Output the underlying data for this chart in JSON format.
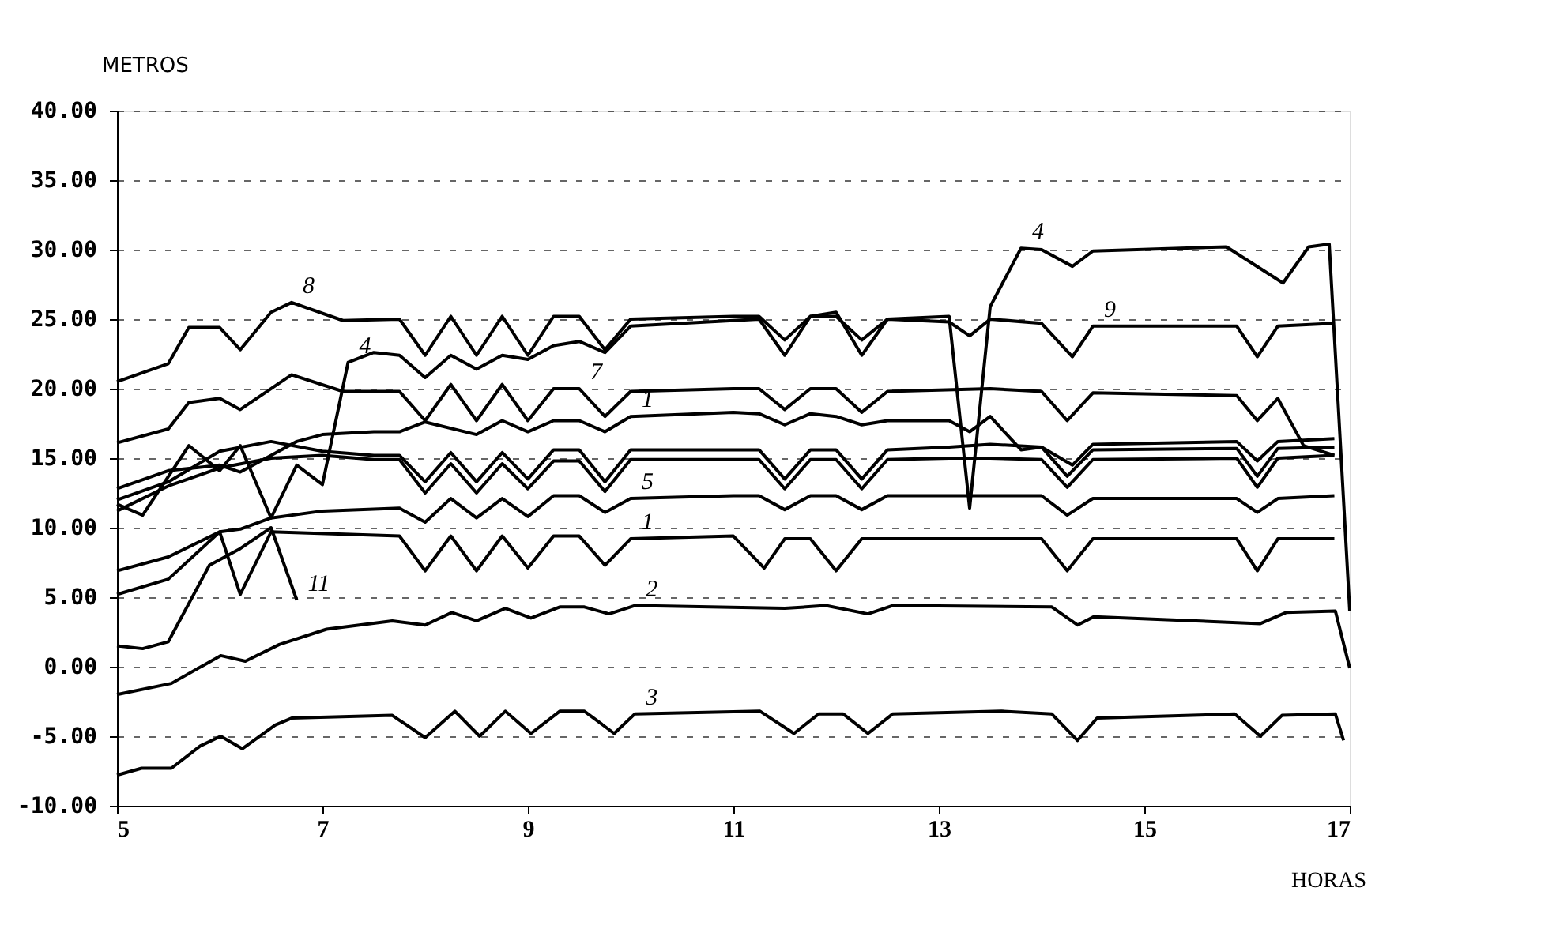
{
  "chart_data": {
    "type": "line",
    "ylabel": "METROS",
    "xlabel": "HORAS",
    "xlim": [
      5,
      17
    ],
    "xticks": [
      5,
      7,
      9,
      11,
      13,
      15,
      17
    ],
    "ylim": [
      -10,
      40
    ],
    "yticks": [
      {
        "value": -10,
        "label": "-10.00"
      },
      {
        "value": -5,
        "label": "-5.00"
      },
      {
        "value": 0,
        "label": "0.00"
      },
      {
        "value": 5,
        "label": "5.00"
      },
      {
        "value": 10,
        "label": "10.00"
      },
      {
        "value": 15,
        "label": "15.00"
      },
      {
        "value": 20,
        "label": "20.00"
      },
      {
        "value": 25,
        "label": "25.00"
      },
      {
        "value": 30,
        "label": "30.00"
      },
      {
        "value": 35,
        "label": "35.00"
      },
      {
        "value": 40,
        "label": "40.00"
      }
    ],
    "grid": "y",
    "marker": "none",
    "line_style": "solid",
    "series": [
      {
        "color": "#000000",
        "x": [
          5,
          5.5,
          5.7,
          6,
          6.2,
          6.5,
          6.7,
          7.2,
          7.75,
          8,
          8.25,
          8.5,
          8.75,
          9,
          9.25,
          9.5,
          9.75,
          10,
          11,
          11.25,
          11.5,
          11.75,
          12,
          12.25,
          12.5,
          13.1,
          13.3,
          13.5,
          14,
          14.3,
          14.5,
          15.9,
          16.1,
          16.3,
          16.85
        ],
        "values": [
          20.5,
          21.8,
          24.4,
          24.4,
          22.8,
          25.5,
          26.2,
          24.9,
          25,
          22.4,
          25.2,
          22.4,
          25.2,
          22.4,
          25.2,
          25.2,
          22.8,
          25,
          25.2,
          25.2,
          23.5,
          25.2,
          25.2,
          23.5,
          25,
          24.8,
          23.8,
          25,
          24.7,
          22.3,
          24.5,
          24.5,
          22.3,
          24.5,
          24.7
        ]
      },
      {
        "color": "#000000",
        "x": [
          5,
          5.25,
          5.7,
          6,
          6.2,
          6.5,
          6.75,
          7,
          7.25,
          7.5,
          7.75,
          8,
          8.25,
          8.5,
          8.75,
          9,
          9.25,
          9.5,
          9.75,
          10,
          11,
          11.25,
          11.5,
          11.75,
          12,
          12.25,
          12.5,
          13.1,
          13.3,
          13.5,
          13.8,
          14,
          14.3,
          14.5,
          15.8,
          16.35,
          16.6,
          16.8,
          17
        ],
        "values": [
          11.7,
          10.9,
          15.9,
          14.1,
          15.9,
          10.7,
          14.5,
          13.1,
          21.9,
          22.6,
          22.4,
          20.8,
          22.4,
          21.4,
          22.4,
          22.1,
          23.1,
          23.4,
          22.6,
          24.5,
          24.9,
          25,
          22.4,
          25.2,
          25.5,
          22.4,
          25,
          25.2,
          11.4,
          25.9,
          30.1,
          30,
          28.8,
          29.9,
          30.2,
          27.6,
          30.2,
          30.4,
          4
        ]
      },
      {
        "color": "#000000",
        "x": [
          5,
          5.5,
          5.7,
          6,
          6.2,
          6.7,
          7.2,
          7.75,
          8,
          8.25,
          8.5,
          8.75,
          9,
          9.25,
          9.5,
          9.75,
          10,
          11,
          11.25,
          11.5,
          11.75,
          12,
          12.25,
          12.5,
          13.5,
          14,
          14.25,
          14.5,
          15.9,
          16.1,
          16.3,
          16.55,
          16.85
        ],
        "values": [
          16.1,
          17.1,
          19,
          19.3,
          18.5,
          21,
          19.8,
          19.8,
          17.7,
          20.3,
          17.7,
          20.3,
          17.7,
          20,
          20,
          18,
          19.8,
          20,
          20,
          18.5,
          20,
          20,
          18.3,
          19.8,
          20,
          19.8,
          17.7,
          19.7,
          19.5,
          17.7,
          19.3,
          15.9,
          15.2
        ]
      },
      {
        "color": "#000000",
        "x": [
          5,
          5.5,
          6,
          6.2,
          6.5,
          6.75,
          7,
          7.5,
          7.75,
          8,
          8.5,
          8.75,
          9,
          9.25,
          9.5,
          9.75,
          10,
          11,
          11.25,
          11.5,
          11.75,
          12,
          12.25,
          12.5,
          13.1,
          13.3,
          13.5,
          13.8,
          14,
          14.3,
          14.5,
          15.9,
          16.1,
          16.3,
          16.85
        ],
        "values": [
          12.8,
          14.1,
          14.5,
          14,
          15.2,
          16.2,
          16.7,
          16.9,
          16.9,
          17.6,
          16.7,
          17.7,
          16.9,
          17.7,
          17.7,
          16.9,
          18,
          18.3,
          18.2,
          17.4,
          18.2,
          18,
          17.4,
          17.7,
          17.7,
          16.9,
          18,
          15.6,
          15.8,
          14.5,
          16,
          16.2,
          14.8,
          16.2,
          16.4
        ]
      },
      {
        "color": "#000000",
        "x": [
          5,
          5.5,
          6,
          6.5,
          7,
          7.5,
          7.75,
          8,
          8.25,
          8.5,
          8.75,
          9,
          9.25,
          9.5,
          9.75,
          10,
          11,
          11.25,
          11.5,
          11.75,
          12,
          12.25,
          12.5,
          13.1,
          13.5,
          14,
          14.25,
          14.5,
          15.9,
          16.1,
          16.3,
          16.85
        ],
        "values": [
          12,
          13.3,
          15.5,
          16.2,
          15.5,
          15.2,
          15.2,
          13.3,
          15.4,
          13.3,
          15.4,
          13.5,
          15.6,
          15.6,
          13.3,
          15.6,
          15.6,
          15.6,
          13.5,
          15.6,
          15.6,
          13.5,
          15.6,
          15.8,
          16,
          15.8,
          13.7,
          15.6,
          15.7,
          13.7,
          15.7,
          15.8
        ]
      },
      {
        "color": "#000000",
        "x": [
          5,
          5.5,
          6,
          6.5,
          7,
          7.5,
          7.75,
          8,
          8.25,
          8.5,
          8.75,
          9,
          9.25,
          9.5,
          9.75,
          10,
          11,
          11.25,
          11.5,
          11.75,
          12,
          12.25,
          12.5,
          13.1,
          13.5,
          14,
          14.25,
          14.5,
          15.9,
          16.1,
          16.3,
          16.85
        ],
        "values": [
          11.2,
          13,
          14.3,
          15,
          15.2,
          14.9,
          14.9,
          12.5,
          14.6,
          12.5,
          14.6,
          12.8,
          14.8,
          14.8,
          12.6,
          14.9,
          14.9,
          14.9,
          12.8,
          14.9,
          14.9,
          12.8,
          14.9,
          15,
          15,
          14.9,
          12.9,
          14.9,
          15,
          12.9,
          15,
          15.2
        ]
      },
      {
        "color": "#000000",
        "x": [
          5,
          5.5,
          6,
          6.2,
          6.5,
          7,
          7.75,
          8,
          8.25,
          8.5,
          8.75,
          9,
          9.25,
          9.5,
          9.75,
          10,
          11,
          11.25,
          11.5,
          11.75,
          12,
          12.25,
          12.5,
          14,
          14.25,
          14.5,
          15.9,
          16.1,
          16.3,
          16.85
        ],
        "values": [
          6.9,
          7.9,
          9.7,
          9.9,
          10.7,
          11.2,
          11.4,
          10.4,
          12.1,
          10.7,
          12.1,
          10.8,
          12.3,
          12.3,
          11.1,
          12.1,
          12.3,
          12.3,
          11.3,
          12.3,
          12.3,
          11.3,
          12.3,
          12.3,
          10.9,
          12.1,
          12.1,
          11.1,
          12.1,
          12.3
        ]
      },
      {
        "color": "#000000",
        "x": [
          5,
          5.5,
          6,
          6.2,
          6.5,
          7.75,
          8,
          8.25,
          8.5,
          8.75,
          9,
          9.25,
          9.5,
          9.75,
          10,
          11,
          11.3,
          11.5,
          11.75,
          12,
          12.25,
          12.5,
          14,
          14.25,
          14.5,
          15.9,
          16.1,
          16.3,
          16.85
        ],
        "values": [
          5.2,
          6.3,
          9.7,
          5.2,
          9.7,
          9.4,
          6.9,
          9.4,
          6.9,
          9.4,
          7.1,
          9.4,
          9.4,
          7.3,
          9.2,
          9.4,
          7.1,
          9.2,
          9.2,
          6.9,
          9.2,
          9.2,
          9.2,
          6.9,
          9.2,
          9.2,
          6.9,
          9.2,
          9.2
        ]
      },
      {
        "color": "#000000",
        "x": [
          5,
          5.25,
          5.5,
          5.9,
          6.2,
          6.5,
          6.75
        ],
        "values": [
          1.5,
          1.3,
          1.8,
          7.3,
          8.5,
          10,
          4.8
        ]
      },
      {
        "color": "#000000",
        "x": [
          5,
          5.53,
          6.01,
          6.25,
          6.58,
          7.04,
          7.68,
          8,
          8.26,
          8.5,
          8.78,
          9.03,
          9.31,
          9.55,
          9.79,
          10.04,
          11.5,
          11.9,
          12.31,
          12.55,
          14.1,
          14.35,
          14.51,
          16.13,
          16.38,
          16.86,
          17
        ],
        "values": [
          -2,
          -1.2,
          0.8,
          0.4,
          1.6,
          2.7,
          3.3,
          3,
          3.9,
          3.3,
          4.2,
          3.5,
          4.3,
          4.3,
          3.8,
          4.4,
          4.2,
          4.4,
          3.8,
          4.4,
          4.3,
          3,
          3.6,
          3.1,
          3.9,
          4,
          -0.1
        ]
      },
      {
        "color": "#000000",
        "x": [
          5,
          5.24,
          5.53,
          5.81,
          6.01,
          6.22,
          6.54,
          6.7,
          7.68,
          8,
          8.29,
          8.53,
          8.78,
          9.03,
          9.31,
          9.55,
          9.84,
          10.04,
          11.26,
          11.59,
          11.83,
          12.07,
          12.31,
          12.55,
          13.61,
          14.1,
          14.35,
          14.54,
          15.88,
          16.13,
          16.34,
          16.86,
          16.94
        ],
        "values": [
          -7.8,
          -7.3,
          -7.3,
          -5.7,
          -5,
          -5.9,
          -4.2,
          -3.7,
          -3.5,
          -5.1,
          -3.2,
          -5,
          -3.2,
          -4.8,
          -3.2,
          -3.2,
          -4.8,
          -3.4,
          -3.2,
          -4.8,
          -3.4,
          -3.4,
          -4.8,
          -3.4,
          -3.2,
          -3.4,
          -5.3,
          -3.7,
          -3.4,
          -5,
          -3.5,
          -3.4,
          -5.3
        ]
      }
    ],
    "annotations": [
      {
        "text": "8",
        "x": 6.7,
        "y": 26.2
      },
      {
        "text": "4",
        "x": 7.25,
        "y": 21.9
      },
      {
        "text": "4",
        "x": 13.8,
        "y": 30.1
      },
      {
        "text": "9",
        "x": 14.5,
        "y": 24.5
      },
      {
        "text": "7",
        "x": 9.5,
        "y": 20
      },
      {
        "text": "1",
        "x": 10,
        "y": 18
      },
      {
        "text": "5",
        "x": 10,
        "y": 12.1
      },
      {
        "text": "1",
        "x": 10,
        "y": 9.2
      },
      {
        "text": "11",
        "x": 6.75,
        "y": 4.8
      },
      {
        "text": "2",
        "x": 10.04,
        "y": 4.4
      },
      {
        "text": "3",
        "x": 10.04,
        "y": -3.4
      }
    ]
  }
}
